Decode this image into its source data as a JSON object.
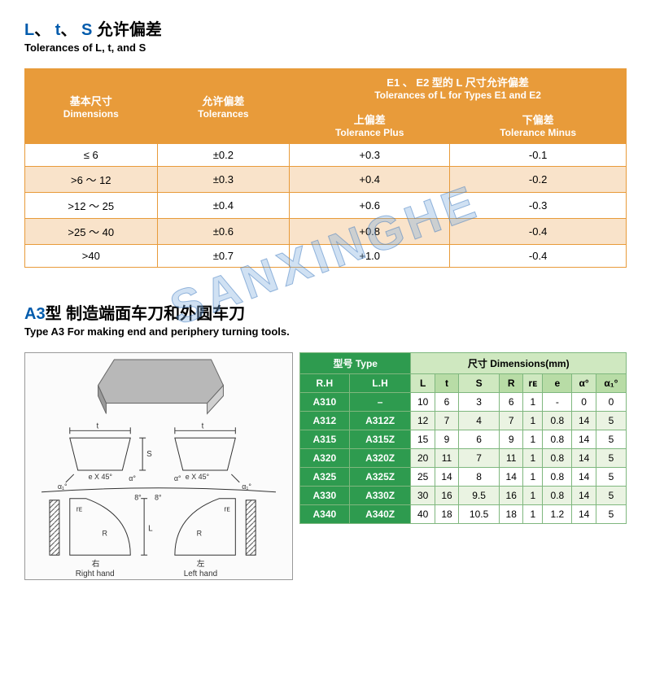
{
  "section1": {
    "title_cn_parts": [
      "L",
      "、",
      "t",
      "、",
      "S",
      " 允许偏差"
    ],
    "title_en": "Tolerances of L, t,  and S",
    "hdr_dim_cn": "基本尺寸",
    "hdr_dim_en": "Dimensions",
    "hdr_tol_cn": "允许偏差",
    "hdr_tol_en": "Tolerances",
    "hdr_e_cn": "E1 、 E2 型的 L 尺寸允许偏差",
    "hdr_e_en": "Tolerances of L for Types E1 and E2",
    "hdr_plus_cn": "上偏差",
    "hdr_plus_en": "Tolerance Plus",
    "hdr_minus_cn": "下偏差",
    "hdr_minus_en": "Tolerance Minus",
    "rows": [
      {
        "dim": "≤ 6",
        "tol": "±0.2",
        "plus": "+0.3",
        "minus": "-0.1"
      },
      {
        "dim": ">6 ～ 12",
        "tol": "±0.3",
        "plus": "+0.4",
        "minus": "-0.2"
      },
      {
        "dim": ">12 ～ 25",
        "tol": "±0.4",
        "plus": "+0.6",
        "minus": "-0.3"
      },
      {
        "dim": ">25 ～ 40",
        "tol": "±0.6",
        "plus": "+0.8",
        "minus": "-0.4"
      },
      {
        "dim": ">40",
        "tol": "±0.7",
        "plus": "+1.0",
        "minus": "-0.4"
      }
    ]
  },
  "section2": {
    "title_cn_prefix": "A3",
    "title_cn_suffix": "型 制造端面车刀和外圆车刀",
    "title_en": "Type A3 For making end and periphery turning tools.",
    "hdr_type": "型号 Type",
    "hdr_dims": "尺寸   Dimensions(mm)",
    "hdr_rh": "R.H",
    "hdr_lh": "L.H",
    "dim_cols": [
      "L",
      "t",
      "S",
      "R",
      "rᴇ",
      "e",
      "α°",
      "α₁°"
    ],
    "rows": [
      {
        "rh": "A310",
        "lh": "–",
        "v": [
          "10",
          "6",
          "3",
          "6",
          "1",
          "-",
          "0",
          "0"
        ]
      },
      {
        "rh": "A312",
        "lh": "A312Z",
        "v": [
          "12",
          "7",
          "4",
          "7",
          "1",
          "0.8",
          "14",
          "5"
        ]
      },
      {
        "rh": "A315",
        "lh": "A315Z",
        "v": [
          "15",
          "9",
          "6",
          "9",
          "1",
          "0.8",
          "14",
          "5"
        ]
      },
      {
        "rh": "A320",
        "lh": "A320Z",
        "v": [
          "20",
          "11",
          "7",
          "11",
          "1",
          "0.8",
          "14",
          "5"
        ]
      },
      {
        "rh": "A325",
        "lh": "A325Z",
        "v": [
          "25",
          "14",
          "8",
          "14",
          "1",
          "0.8",
          "14",
          "5"
        ]
      },
      {
        "rh": "A330",
        "lh": "A330Z",
        "v": [
          "30",
          "16",
          "9.5",
          "16",
          "1",
          "0.8",
          "14",
          "5"
        ]
      },
      {
        "rh": "A340",
        "lh": "A340Z",
        "v": [
          "40",
          "18",
          "10.5",
          "18",
          "1",
          "1.2",
          "14",
          "5"
        ]
      }
    ],
    "diagram_labels": {
      "t": "t",
      "s": "S",
      "ex45": "e X 45°",
      "alpha1": "α₁°",
      "alpha": "α°",
      "eight": "8°",
      "re": "rᴇ",
      "R": "R",
      "L": "L",
      "right_cn": "右",
      "right_en": "Right hand",
      "left_cn": "左",
      "left_en": "Left hand"
    }
  },
  "watermark": "SANXINGHE"
}
